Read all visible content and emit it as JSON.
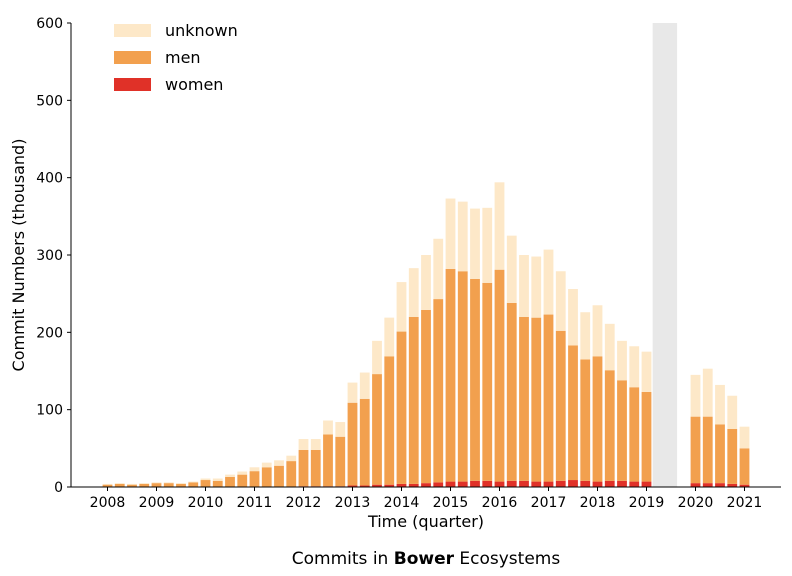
{
  "chart_data": {
    "type": "bar",
    "stacked": true,
    "xlabel": "Time (quarter)",
    "ylabel": "Commit Numbers (thousand)",
    "ylim": [
      0,
      600
    ],
    "yticks": [
      0,
      100,
      200,
      300,
      400,
      500,
      600
    ],
    "xtick_labels": [
      "2008",
      "2009",
      "2010",
      "2011",
      "2012",
      "2013",
      "2014",
      "2015",
      "2016",
      "2017",
      "2018",
      "2019",
      "2020",
      "2021"
    ],
    "caption": {
      "before": "Commits in ",
      "bold": "Bower",
      "after": " Ecosystems"
    },
    "legend_position": "top-left",
    "gap_period": {
      "start": "2019Q2",
      "end": "2019Q3",
      "color": "#e8e8e8"
    },
    "categories": [
      "2008Q1",
      "2008Q2",
      "2008Q3",
      "2008Q4",
      "2009Q1",
      "2009Q2",
      "2009Q3",
      "2009Q4",
      "2010Q1",
      "2010Q2",
      "2010Q3",
      "2010Q4",
      "2011Q1",
      "2011Q2",
      "2011Q3",
      "2011Q4",
      "2012Q1",
      "2012Q2",
      "2012Q3",
      "2012Q4",
      "2013Q1",
      "2013Q2",
      "2013Q3",
      "2013Q4",
      "2014Q1",
      "2014Q2",
      "2014Q3",
      "2014Q4",
      "2015Q1",
      "2015Q2",
      "2015Q3",
      "2015Q4",
      "2016Q1",
      "2016Q2",
      "2016Q3",
      "2016Q4",
      "2017Q1",
      "2017Q2",
      "2017Q3",
      "2017Q4",
      "2018Q1",
      "2018Q2",
      "2018Q3",
      "2018Q4",
      "2019Q1",
      "2019Q2",
      "2019Q3",
      "2019Q4",
      "2020Q1",
      "2020Q2",
      "2020Q3",
      "2020Q4",
      "2021Q1"
    ],
    "series": [
      {
        "name": "women",
        "color": "#e03128",
        "values": [
          0,
          0,
          0,
          0,
          0,
          0,
          0,
          0,
          0,
          0,
          0,
          0,
          0.5,
          0.5,
          0.5,
          0.5,
          1,
          1,
          1,
          1,
          2,
          2,
          3,
          3,
          4,
          4,
          5,
          6,
          7,
          7,
          8,
          8,
          7,
          8,
          8,
          7,
          7,
          8,
          9,
          8,
          7,
          8,
          8,
          7,
          7,
          null,
          null,
          null,
          5,
          5,
          5,
          4,
          3
        ]
      },
      {
        "name": "men",
        "color": "#f2a04e",
        "values": [
          3,
          4,
          3,
          4,
          5,
          5,
          4,
          6,
          9,
          8,
          13,
          16,
          20,
          25,
          27,
          33,
          47,
          47,
          67,
          64,
          107,
          112,
          143,
          166,
          197,
          216,
          224,
          237,
          275,
          272,
          261,
          256,
          274,
          230,
          212,
          212,
          216,
          194,
          174,
          157,
          162,
          143,
          130,
          122,
          116,
          null,
          null,
          null,
          86,
          86,
          76,
          71,
          47
        ]
      },
      {
        "name": "unknown",
        "color": "#fde8c8",
        "values": [
          1,
          1,
          1,
          1,
          1,
          1,
          1,
          1,
          2,
          3,
          3,
          4,
          5,
          6,
          7,
          7,
          14,
          14,
          18,
          19,
          26,
          34,
          43,
          50,
          64,
          63,
          71,
          78,
          91,
          90,
          91,
          97,
          113,
          87,
          80,
          79,
          84,
          77,
          73,
          61,
          66,
          60,
          51,
          53,
          52,
          null,
          null,
          null,
          54,
          62,
          51,
          43,
          28
        ]
      }
    ]
  }
}
